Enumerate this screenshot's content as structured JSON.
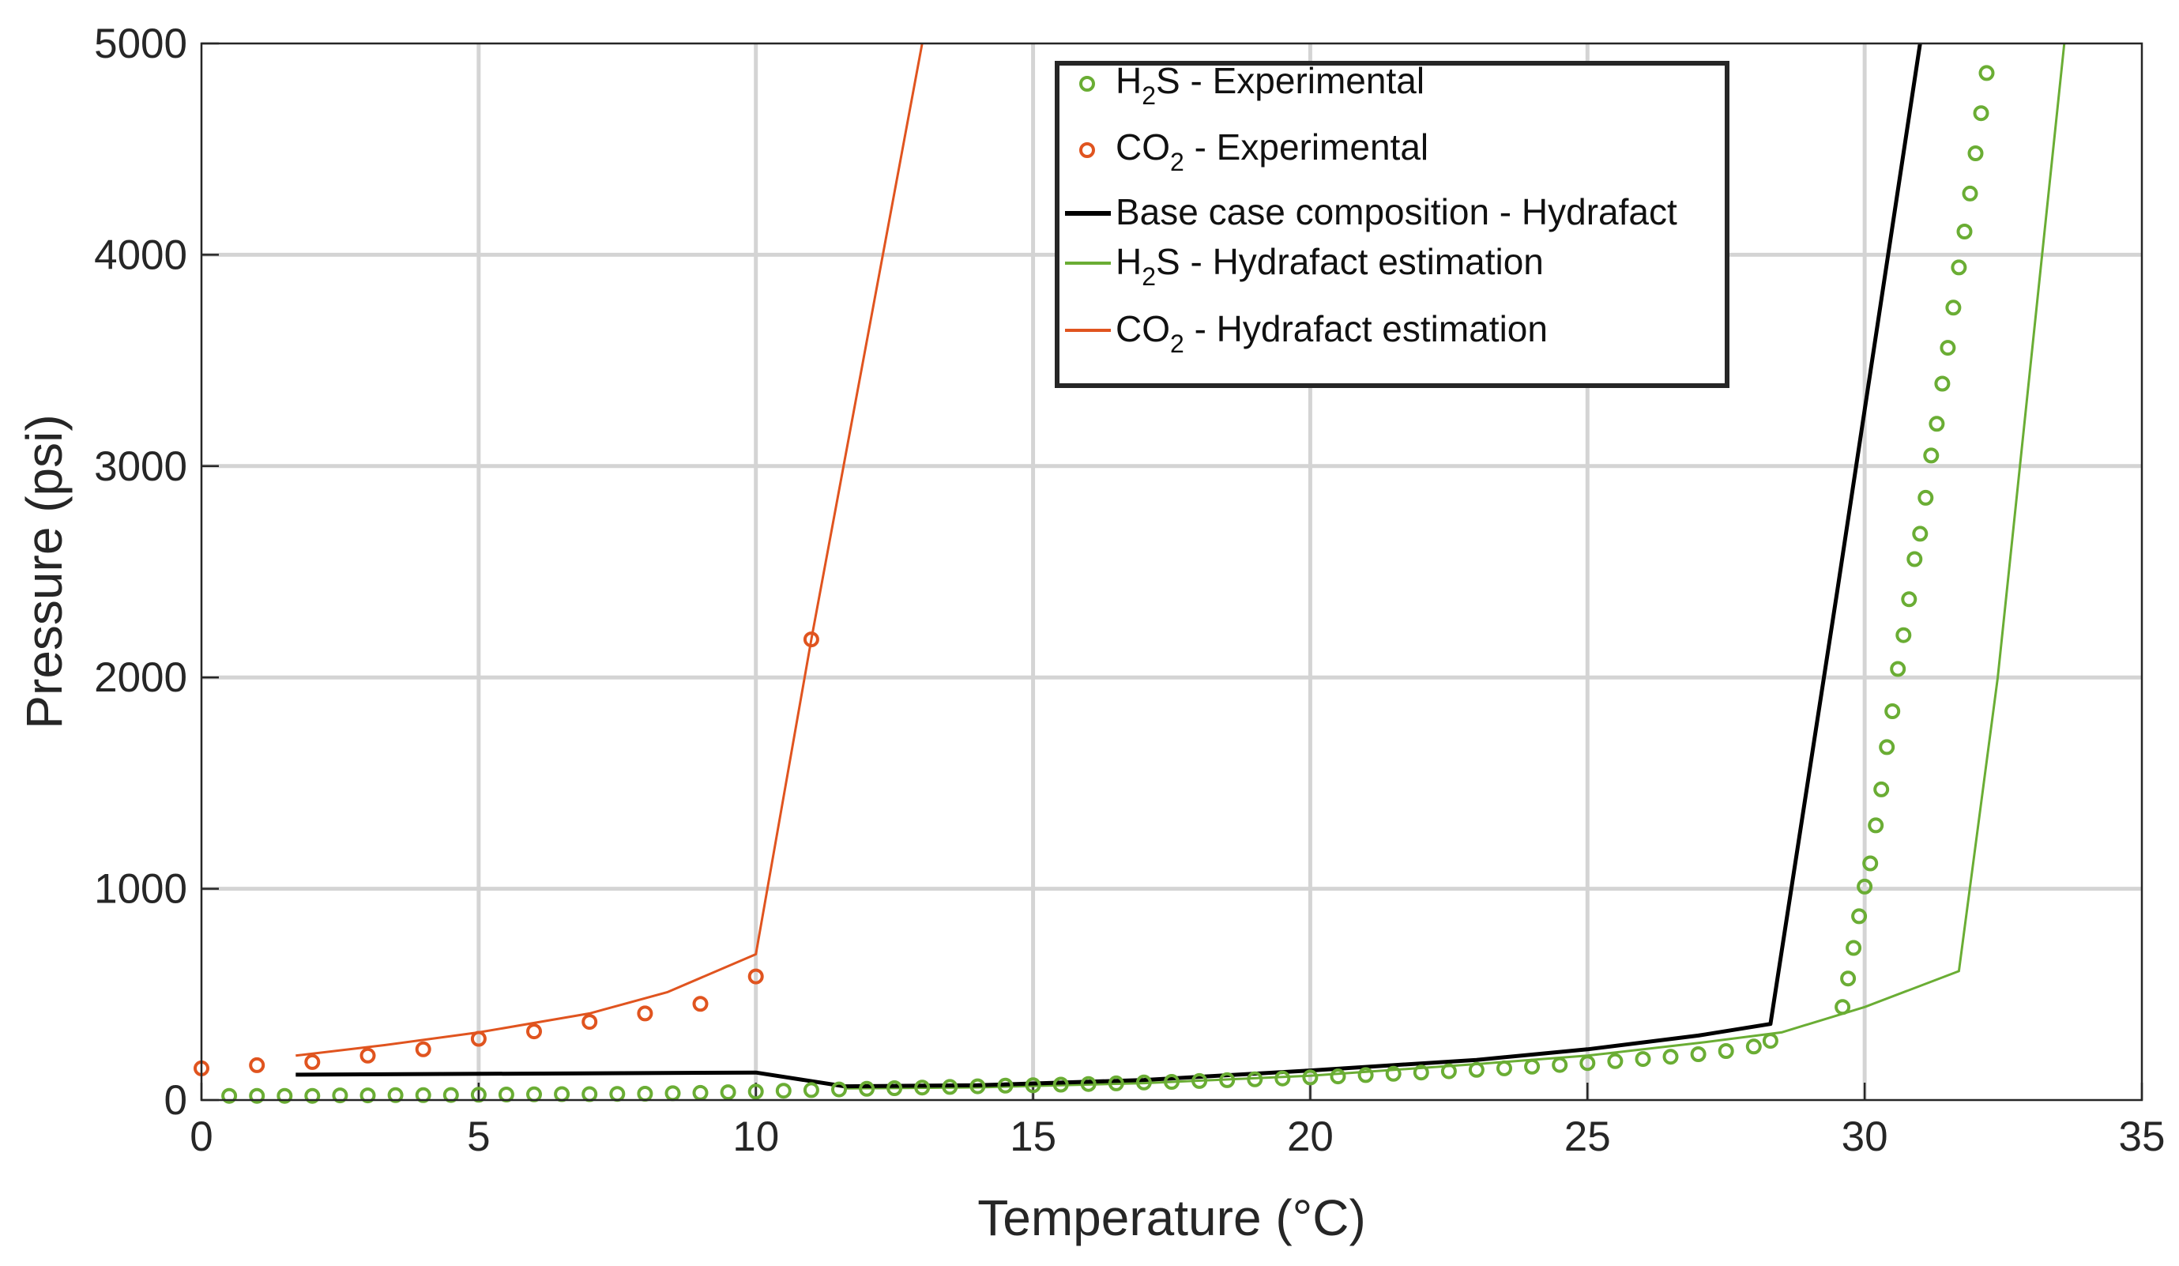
{
  "chart_data": {
    "type": "line",
    "title": "",
    "xlabel": "Temperature (°C)",
    "ylabel": "Pressure (psi)",
    "xlim": [
      0,
      35
    ],
    "ylim": [
      0,
      5000
    ],
    "x_ticks": [
      0,
      5,
      10,
      15,
      20,
      25,
      30,
      35
    ],
    "y_ticks": [
      0,
      1000,
      2000,
      3000,
      4000,
      5000
    ],
    "grid": true,
    "legend_position": "top-center",
    "colors": {
      "green": "#6aad34",
      "orange": "#e0541f",
      "black": "#000000"
    },
    "series": [
      {
        "name": "H2S - Experimental",
        "legend": {
          "main": "H",
          "sub": "2",
          "rest": "S - Experimental"
        },
        "mode": "markers",
        "color": "#6aad34",
        "points": [
          [
            0.5,
            20
          ],
          [
            1.0,
            20
          ],
          [
            1.5,
            20
          ],
          [
            2.0,
            20
          ],
          [
            2.5,
            22
          ],
          [
            3.0,
            22
          ],
          [
            3.5,
            23
          ],
          [
            4.0,
            23
          ],
          [
            4.5,
            24
          ],
          [
            5.0,
            25
          ],
          [
            5.5,
            26
          ],
          [
            6.0,
            27
          ],
          [
            6.5,
            28
          ],
          [
            7.0,
            28
          ],
          [
            7.5,
            29
          ],
          [
            8.0,
            30
          ],
          [
            8.5,
            32
          ],
          [
            9.0,
            34
          ],
          [
            9.5,
            37
          ],
          [
            10.0,
            40
          ],
          [
            10.5,
            44
          ],
          [
            11.0,
            47
          ],
          [
            11.5,
            50
          ],
          [
            12.0,
            53
          ],
          [
            12.5,
            56
          ],
          [
            13.0,
            59
          ],
          [
            13.5,
            62
          ],
          [
            14.0,
            65
          ],
          [
            14.5,
            68
          ],
          [
            15.0,
            70
          ],
          [
            15.5,
            73
          ],
          [
            16.0,
            76
          ],
          [
            16.5,
            79
          ],
          [
            17.0,
            83
          ],
          [
            17.5,
            86
          ],
          [
            18.0,
            90
          ],
          [
            18.5,
            94
          ],
          [
            19.0,
            98
          ],
          [
            19.5,
            102
          ],
          [
            20.0,
            107
          ],
          [
            20.5,
            112
          ],
          [
            21.0,
            118
          ],
          [
            21.5,
            124
          ],
          [
            22.0,
            130
          ],
          [
            22.5,
            136
          ],
          [
            23.0,
            143
          ],
          [
            23.5,
            150
          ],
          [
            24.0,
            158
          ],
          [
            24.5,
            166
          ],
          [
            25.0,
            175
          ],
          [
            25.5,
            184
          ],
          [
            26.0,
            194
          ],
          [
            26.5,
            205
          ],
          [
            27.0,
            217
          ],
          [
            27.5,
            232
          ],
          [
            28.0,
            253
          ],
          [
            28.3,
            280
          ],
          [
            29.6,
            440
          ],
          [
            29.7,
            575
          ],
          [
            29.8,
            720
          ],
          [
            29.9,
            870
          ],
          [
            30.0,
            1010
          ],
          [
            30.1,
            1120
          ],
          [
            30.2,
            1300
          ],
          [
            30.3,
            1470
          ],
          [
            30.4,
            1670
          ],
          [
            30.5,
            1840
          ],
          [
            30.6,
            2040
          ],
          [
            30.7,
            2200
          ],
          [
            30.8,
            2370
          ],
          [
            30.9,
            2560
          ],
          [
            31.0,
            2680
          ],
          [
            31.1,
            2850
          ],
          [
            31.2,
            3050
          ],
          [
            31.3,
            3200
          ],
          [
            31.4,
            3390
          ],
          [
            31.5,
            3560
          ],
          [
            31.6,
            3750
          ],
          [
            31.7,
            3940
          ],
          [
            31.8,
            4110
          ],
          [
            31.9,
            4290
          ],
          [
            32.0,
            4480
          ],
          [
            32.1,
            4670
          ],
          [
            32.2,
            4860
          ]
        ]
      },
      {
        "name": "CO2 - Experimental",
        "legend": {
          "main": "CO",
          "sub": "2",
          "rest": " - Experimental"
        },
        "mode": "markers",
        "color": "#e0541f",
        "points": [
          [
            0.0,
            150
          ],
          [
            1.0,
            165
          ],
          [
            2.0,
            180
          ],
          [
            3.0,
            210
          ],
          [
            4.0,
            240
          ],
          [
            5.0,
            290
          ],
          [
            6.0,
            325
          ],
          [
            7.0,
            370
          ],
          [
            8.0,
            410
          ],
          [
            9.0,
            455
          ],
          [
            10.0,
            585
          ],
          [
            11.0,
            2180
          ]
        ]
      },
      {
        "name": "Base case composition - Hydrafact",
        "legend": {
          "main": "Base case composition - Hydrafact",
          "sub": "",
          "rest": ""
        },
        "mode": "line",
        "line_width": 5,
        "color": "#000000",
        "points": [
          [
            1.7,
            120
          ],
          [
            10.0,
            130
          ],
          [
            11.6,
            65
          ],
          [
            14.0,
            70
          ],
          [
            17.0,
            95
          ],
          [
            20.0,
            140
          ],
          [
            23.0,
            190
          ],
          [
            25.0,
            240
          ],
          [
            27.0,
            305
          ],
          [
            28.3,
            360
          ],
          [
            29.5,
            2400
          ],
          [
            31.0,
            5000
          ]
        ]
      },
      {
        "name": "H2S - Hydrafact estimation",
        "legend": {
          "main": "H",
          "sub": "2",
          "rest": "S - Hydrafact estimation"
        },
        "mode": "line",
        "line_width": 3,
        "color": "#6aad34",
        "points": [
          [
            11.6,
            55
          ],
          [
            14.0,
            60
          ],
          [
            17.0,
            80
          ],
          [
            20.0,
            115
          ],
          [
            23.0,
            170
          ],
          [
            25.0,
            210
          ],
          [
            27.0,
            270
          ],
          [
            28.5,
            320
          ],
          [
            30.0,
            440
          ],
          [
            31.7,
            610
          ],
          [
            32.4,
            2000
          ],
          [
            33.6,
            5000
          ]
        ]
      },
      {
        "name": "CO2 - Hydrafact estimation",
        "legend": {
          "main": "CO",
          "sub": "2",
          "rest": " - Hydrafact estimation"
        },
        "mode": "line",
        "line_width": 3,
        "color": "#e0541f",
        "points": [
          [
            1.7,
            210
          ],
          [
            3.3,
            260
          ],
          [
            5.0,
            320
          ],
          [
            7.0,
            410
          ],
          [
            8.4,
            510
          ],
          [
            10.0,
            690
          ],
          [
            11.0,
            2180
          ],
          [
            13.0,
            5000
          ]
        ]
      }
    ]
  }
}
